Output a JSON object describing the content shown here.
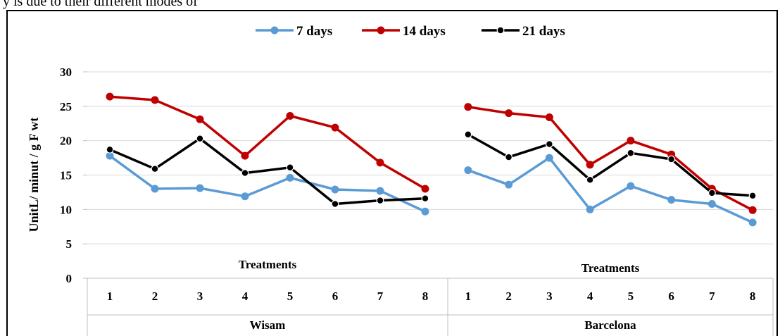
{
  "page_header_fragment": "y is due to their different modes of",
  "chart_data": {
    "type": "line",
    "title": "",
    "ylabel": "UnitL/ minut / g  F wt",
    "ylim": [
      0,
      30
    ],
    "yticks": [
      0,
      5,
      10,
      15,
      20,
      25,
      30
    ],
    "grid": true,
    "legend_position": "top",
    "groups": [
      {
        "name": "Wisam",
        "xlabel": "Treatments",
        "categories": [
          "1",
          "2",
          "3",
          "4",
          "5",
          "6",
          "7",
          "8"
        ],
        "series": [
          {
            "name": "7 days",
            "color": "#5b9bd5",
            "values": [
              17.8,
              13.0,
              13.1,
              11.9,
              14.6,
              12.9,
              12.7,
              9.7
            ]
          },
          {
            "name": "14 days",
            "color": "#c00000",
            "values": [
              26.4,
              25.9,
              23.1,
              17.8,
              23.6,
              21.9,
              16.8,
              13.0
            ]
          },
          {
            "name": "21 days",
            "color": "#000000",
            "values": [
              18.7,
              15.9,
              20.3,
              15.3,
              16.1,
              10.8,
              11.3,
              11.6
            ]
          }
        ]
      },
      {
        "name": "Barcelona",
        "xlabel": "Treatments",
        "categories": [
          "1",
          "2",
          "3",
          "4",
          "5",
          "6",
          "7",
          "8"
        ],
        "series": [
          {
            "name": "7 days",
            "color": "#5b9bd5",
            "values": [
              15.7,
              13.6,
              17.5,
              10.0,
              13.4,
              11.4,
              10.8,
              8.1
            ]
          },
          {
            "name": "14 days",
            "color": "#c00000",
            "values": [
              24.9,
              24.0,
              23.4,
              16.5,
              20.0,
              18.0,
              13.0,
              9.9
            ]
          },
          {
            "name": "21 days",
            "color": "#000000",
            "values": [
              20.9,
              17.6,
              19.5,
              14.3,
              18.2,
              17.3,
              12.4,
              12.0
            ]
          }
        ]
      }
    ]
  }
}
